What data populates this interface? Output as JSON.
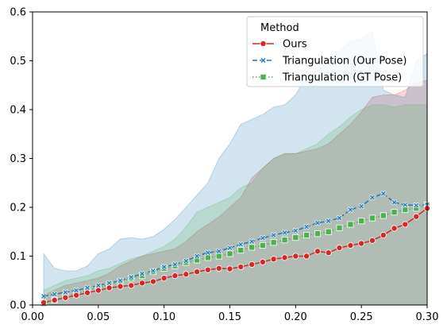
{
  "chart_data": {
    "type": "line",
    "title": "",
    "xlabel": "",
    "ylabel": "",
    "xlim": [
      0.0,
      0.3
    ],
    "ylim": [
      0.0,
      0.6
    ],
    "x_ticks": [
      0.0,
      0.05,
      0.1,
      0.15,
      0.2,
      0.25,
      0.3
    ],
    "x_tick_labels": [
      "0.00",
      "0.05",
      "0.10",
      "0.15",
      "0.20",
      "0.25",
      "0.30"
    ],
    "y_ticks": [
      0.0,
      0.1,
      0.2,
      0.3,
      0.4,
      0.5,
      0.6
    ],
    "y_tick_labels": [
      "0.0",
      "0.1",
      "0.2",
      "0.3",
      "0.4",
      "0.5",
      "0.6"
    ],
    "grid": false,
    "legend": {
      "title": "Method",
      "placement": "top-right"
    },
    "series": [
      {
        "name": "Ours",
        "color": "#d62728",
        "marker": "circle",
        "line_style": "solid",
        "x": [
          0.0085,
          0.0167,
          0.025,
          0.0333,
          0.0417,
          0.05,
          0.0583,
          0.0667,
          0.075,
          0.0833,
          0.0917,
          0.1,
          0.1083,
          0.1167,
          0.125,
          0.1333,
          0.1417,
          0.15,
          0.1583,
          0.1667,
          0.175,
          0.1833,
          0.1917,
          0.2,
          0.2083,
          0.2167,
          0.225,
          0.2333,
          0.2417,
          0.25,
          0.2583,
          0.2667,
          0.275,
          0.2833,
          0.2917,
          0.3
        ],
        "values": [
          0.005,
          0.01,
          0.015,
          0.02,
          0.025,
          0.03,
          0.035,
          0.038,
          0.04,
          0.045,
          0.048,
          0.055,
          0.06,
          0.063,
          0.068,
          0.072,
          0.075,
          0.074,
          0.078,
          0.083,
          0.088,
          0.094,
          0.097,
          0.1,
          0.1,
          0.11,
          0.107,
          0.117,
          0.122,
          0.126,
          0.132,
          0.143,
          0.157,
          0.165,
          0.181,
          0.198
        ],
        "band_lower": [
          0.0,
          0.0,
          0.0,
          0.0,
          0.0,
          0.0,
          0.0,
          0.0,
          0.0,
          0.0,
          0.0,
          0.0,
          0.0,
          0.0,
          0.0,
          0.0,
          0.0,
          0.0,
          0.0,
          0.0,
          0.0,
          0.0,
          0.0,
          0.0,
          0.0,
          0.0,
          0.0,
          0.0,
          0.0,
          0.0,
          0.0,
          0.0,
          0.0,
          0.0,
          0.0,
          0.0
        ],
        "band_upper": [
          0.02,
          0.03,
          0.04,
          0.045,
          0.05,
          0.055,
          0.065,
          0.08,
          0.09,
          0.1,
          0.105,
          0.11,
          0.115,
          0.13,
          0.15,
          0.165,
          0.18,
          0.2,
          0.22,
          0.26,
          0.28,
          0.3,
          0.31,
          0.31,
          0.315,
          0.32,
          0.33,
          0.35,
          0.37,
          0.395,
          0.425,
          0.43,
          0.43,
          0.44,
          0.455,
          0.46
        ]
      },
      {
        "name": "Triangulation (Our Pose)",
        "color": "#1f77b4",
        "marker": "x",
        "line_style": "dashed",
        "x": [
          0.0085,
          0.0167,
          0.025,
          0.0333,
          0.0417,
          0.05,
          0.0583,
          0.0667,
          0.075,
          0.0833,
          0.0917,
          0.1,
          0.1083,
          0.1167,
          0.125,
          0.1333,
          0.1417,
          0.15,
          0.1583,
          0.1667,
          0.175,
          0.1833,
          0.1917,
          0.2,
          0.2083,
          0.2167,
          0.225,
          0.2333,
          0.2417,
          0.25,
          0.2583,
          0.2667,
          0.275,
          0.2833,
          0.2917,
          0.3
        ],
        "values": [
          0.018,
          0.022,
          0.026,
          0.03,
          0.035,
          0.04,
          0.045,
          0.05,
          0.057,
          0.064,
          0.07,
          0.078,
          0.083,
          0.09,
          0.1,
          0.107,
          0.11,
          0.117,
          0.124,
          0.13,
          0.137,
          0.143,
          0.148,
          0.152,
          0.16,
          0.168,
          0.172,
          0.178,
          0.195,
          0.202,
          0.22,
          0.228,
          0.21,
          0.205,
          0.204,
          0.205
        ],
        "band_lower": [
          0.0,
          0.0,
          0.0,
          0.0,
          0.0,
          0.0,
          0.0,
          0.0,
          0.0,
          0.0,
          0.0,
          0.0,
          0.0,
          0.0,
          0.0,
          0.0,
          0.0,
          0.0,
          0.0,
          0.0,
          0.0,
          0.0,
          0.0,
          0.0,
          0.0,
          0.0,
          0.0,
          0.0,
          0.0,
          0.0,
          0.0,
          0.0,
          0.0,
          0.0,
          0.0,
          0.0
        ],
        "band_upper": [
          0.105,
          0.075,
          0.07,
          0.07,
          0.08,
          0.105,
          0.115,
          0.135,
          0.138,
          0.135,
          0.14,
          0.155,
          0.175,
          0.2,
          0.225,
          0.25,
          0.3,
          0.33,
          0.37,
          0.38,
          0.39,
          0.405,
          0.41,
          0.43,
          0.47,
          0.48,
          0.5,
          0.52,
          0.54,
          0.545,
          0.56,
          0.44,
          0.43,
          0.425,
          0.5,
          0.515
        ]
      },
      {
        "name": "Triangulation (GT Pose)",
        "color": "#4caf50",
        "marker": "square",
        "line_style": "dotted",
        "x": [
          0.0085,
          0.0167,
          0.025,
          0.0333,
          0.0417,
          0.05,
          0.0583,
          0.0667,
          0.075,
          0.0833,
          0.0917,
          0.1,
          0.1083,
          0.1167,
          0.125,
          0.1333,
          0.1417,
          0.15,
          0.1583,
          0.1667,
          0.175,
          0.1833,
          0.1917,
          0.2,
          0.2083,
          0.2167,
          0.225,
          0.2333,
          0.2417,
          0.25,
          0.2583,
          0.2667,
          0.275,
          0.2833,
          0.2917,
          0.3
        ],
        "values": [
          0.003,
          0.01,
          0.018,
          0.022,
          0.03,
          0.035,
          0.042,
          0.048,
          0.055,
          0.06,
          0.068,
          0.075,
          0.08,
          0.087,
          0.092,
          0.097,
          0.1,
          0.105,
          0.112,
          0.118,
          0.122,
          0.128,
          0.133,
          0.138,
          0.143,
          0.146,
          0.15,
          0.158,
          0.165,
          0.172,
          0.178,
          0.183,
          0.19,
          0.195,
          0.198,
          0.205
        ],
        "band_lower": [
          0.0,
          0.0,
          0.0,
          0.0,
          0.0,
          0.0,
          0.0,
          0.0,
          0.0,
          0.0,
          0.0,
          0.0,
          0.0,
          0.0,
          0.0,
          0.0,
          0.0,
          0.0,
          0.0,
          0.0,
          0.0,
          0.0,
          0.0,
          0.0,
          0.0,
          0.0,
          0.0,
          0.0,
          0.0,
          0.0,
          0.0,
          0.0,
          0.0,
          0.0,
          0.0,
          0.0
        ],
        "band_upper": [
          0.03,
          0.04,
          0.05,
          0.055,
          0.06,
          0.07,
          0.075,
          0.085,
          0.095,
          0.1,
          0.11,
          0.12,
          0.135,
          0.16,
          0.19,
          0.2,
          0.21,
          0.22,
          0.24,
          0.25,
          0.28,
          0.3,
          0.31,
          0.31,
          0.32,
          0.33,
          0.35,
          0.365,
          0.385,
          0.4,
          0.41,
          0.41,
          0.405,
          0.41,
          0.41,
          0.41
        ]
      }
    ]
  }
}
